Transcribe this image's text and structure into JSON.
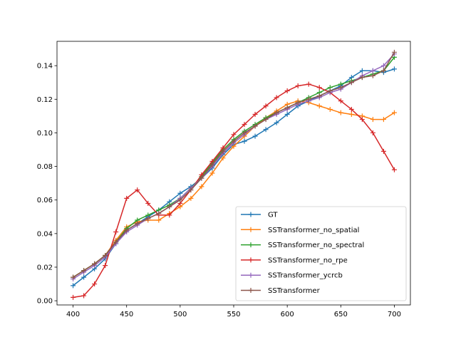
{
  "chart_data": {
    "type": "line",
    "title": "",
    "xlabel": "",
    "ylabel": "",
    "xlim": [
      385,
      715
    ],
    "ylim": [
      -0.0025,
      0.1545
    ],
    "xticks": [
      400,
      450,
      500,
      550,
      600,
      650,
      700
    ],
    "yticks": [
      0.0,
      0.02,
      0.04,
      0.06,
      0.08,
      0.1,
      0.12,
      0.14
    ],
    "xtick_labels": [
      "400",
      "450",
      "500",
      "550",
      "600",
      "650",
      "700"
    ],
    "ytick_labels": [
      "0.00",
      "0.02",
      "0.04",
      "0.06",
      "0.08",
      "0.10",
      "0.12",
      "0.14"
    ],
    "grid": false,
    "legend_position": "lower-right",
    "x": [
      400,
      410,
      420,
      430,
      440,
      450,
      460,
      470,
      480,
      490,
      500,
      510,
      520,
      530,
      540,
      550,
      560,
      570,
      580,
      590,
      600,
      610,
      620,
      630,
      640,
      650,
      660,
      670,
      680,
      690,
      700
    ],
    "series": [
      {
        "name": "GT",
        "color": "#1f77b4",
        "values": [
          0.009,
          0.014,
          0.019,
          0.025,
          0.034,
          0.042,
          0.046,
          0.05,
          0.054,
          0.059,
          0.064,
          0.068,
          0.073,
          0.079,
          0.087,
          0.093,
          0.095,
          0.098,
          0.102,
          0.106,
          0.111,
          0.116,
          0.119,
          0.122,
          0.125,
          0.128,
          0.133,
          0.137,
          0.137,
          0.136,
          0.138
        ]
      },
      {
        "name": "SSTransformer_no_spatial",
        "color": "#ff7f0e",
        "values": [
          0.014,
          0.018,
          0.022,
          0.027,
          0.036,
          0.044,
          0.047,
          0.048,
          0.048,
          0.052,
          0.056,
          0.061,
          0.068,
          0.076,
          0.085,
          0.092,
          0.098,
          0.104,
          0.109,
          0.113,
          0.117,
          0.119,
          0.118,
          0.116,
          0.114,
          0.112,
          0.111,
          0.11,
          0.108,
          0.108,
          0.112
        ]
      },
      {
        "name": "SSTransformer_no_spectral",
        "color": "#2ca02c",
        "values": [
          0.014,
          0.018,
          0.022,
          0.027,
          0.035,
          0.043,
          0.048,
          0.051,
          0.054,
          0.057,
          0.061,
          0.067,
          0.074,
          0.082,
          0.09,
          0.096,
          0.101,
          0.105,
          0.109,
          0.112,
          0.115,
          0.118,
          0.121,
          0.124,
          0.127,
          0.129,
          0.131,
          0.133,
          0.135,
          0.137,
          0.145
        ]
      },
      {
        "name": "SSTransformer_no_rpe",
        "color": "#d62728",
        "values": [
          0.002,
          0.003,
          0.01,
          0.021,
          0.041,
          0.061,
          0.066,
          0.058,
          0.051,
          0.051,
          0.058,
          0.066,
          0.075,
          0.083,
          0.091,
          0.099,
          0.105,
          0.111,
          0.116,
          0.121,
          0.125,
          0.128,
          0.129,
          0.127,
          0.124,
          0.119,
          0.114,
          0.108,
          0.1,
          0.089,
          0.078
        ]
      },
      {
        "name": "SSTransformer_ycrcb",
        "color": "#9467bd",
        "values": [
          0.013,
          0.017,
          0.021,
          0.026,
          0.034,
          0.041,
          0.045,
          0.049,
          0.052,
          0.056,
          0.061,
          0.067,
          0.073,
          0.08,
          0.088,
          0.094,
          0.099,
          0.104,
          0.108,
          0.111,
          0.114,
          0.117,
          0.119,
          0.121,
          0.124,
          0.126,
          0.13,
          0.134,
          0.137,
          0.14,
          0.147
        ]
      },
      {
        "name": "SSTransformer",
        "color": "#8c564b",
        "values": [
          0.014,
          0.018,
          0.022,
          0.027,
          0.035,
          0.042,
          0.046,
          0.049,
          0.052,
          0.056,
          0.06,
          0.066,
          0.073,
          0.081,
          0.089,
          0.095,
          0.1,
          0.104,
          0.108,
          0.112,
          0.115,
          0.118,
          0.12,
          0.122,
          0.125,
          0.127,
          0.13,
          0.133,
          0.134,
          0.137,
          0.148
        ]
      }
    ]
  }
}
